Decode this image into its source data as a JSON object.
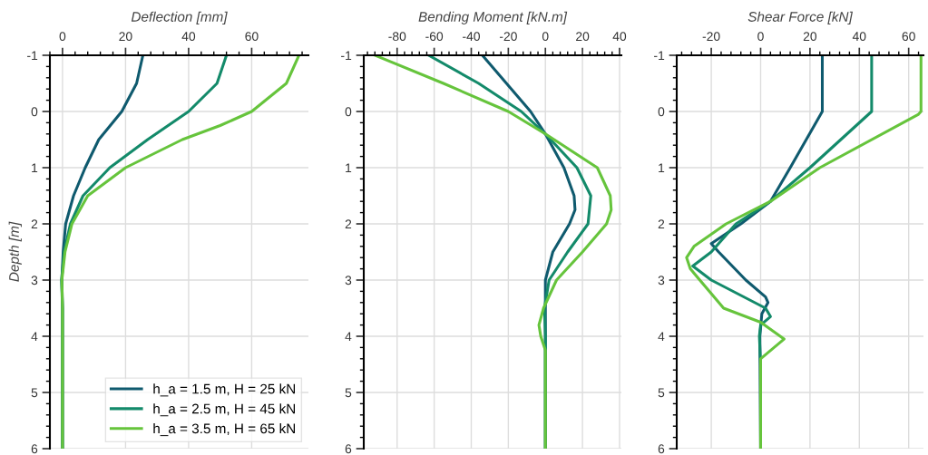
{
  "chart_data": [
    {
      "type": "line",
      "xlabel": "Deflection [mm]",
      "ylabel": "Depth [m]",
      "xlim": [
        -4,
        78
      ],
      "xticks": [
        0,
        20,
        40,
        60
      ],
      "ylim": [
        6,
        -1
      ],
      "yticks": [
        -1,
        0,
        1,
        2,
        3,
        4,
        5,
        6
      ],
      "grid": true,
      "legend": "bottom right",
      "series": [
        {
          "name": "h_a = 1.5 m, H = 25 kN",
          "color": "#0f5a6e",
          "x": [
            25.5,
            23.5,
            18.8,
            11.5,
            7.2,
            3.5,
            1,
            0.2,
            -0.2,
            0,
            0
          ],
          "values": [
            -1,
            -0.5,
            0,
            0.5,
            1,
            1.5,
            2,
            2.5,
            3,
            3.5,
            6
          ]
        },
        {
          "name": "h_a = 2.5 m, H = 45 kN",
          "color": "#138a6a",
          "x": [
            52,
            49,
            40,
            27,
            15,
            6.5,
            2.5,
            0.5,
            -0.3,
            0,
            0
          ],
          "values": [
            -1,
            -0.5,
            0,
            0.5,
            1,
            1.5,
            2,
            2.5,
            3,
            3.5,
            6
          ]
        },
        {
          "name": "h_a = 3.5 m, H = 65 kN",
          "color": "#66c43c",
          "x": [
            75,
            71,
            60,
            50,
            38,
            20,
            8,
            3,
            0.8,
            -0.2,
            0,
            0
          ],
          "values": [
            -1,
            -0.5,
            0,
            0.25,
            0.5,
            1,
            1.5,
            2,
            2.5,
            3,
            3.5,
            6
          ]
        }
      ]
    },
    {
      "type": "line",
      "xlabel": "Bending Moment [kN.m]",
      "xlim": [
        -98,
        41
      ],
      "xticks": [
        -80,
        -60,
        -40,
        -20,
        0,
        20,
        40
      ],
      "ylim": [
        6,
        -1
      ],
      "yticks": [
        -1,
        0,
        1,
        2,
        3,
        4,
        5,
        6
      ],
      "grid": true,
      "series": [
        {
          "color": "#0f5a6e",
          "x": [
            -34,
            -21,
            -8,
            0,
            10,
            15.5,
            16,
            13,
            4,
            0,
            0,
            0
          ],
          "values": [
            -1,
            -0.5,
            0,
            0.4,
            1,
            1.5,
            1.75,
            2,
            2.5,
            3,
            3.5,
            6
          ]
        },
        {
          "color": "#138a6a",
          "x": [
            -63,
            -36,
            -13,
            0,
            17,
            24.5,
            23,
            12,
            2,
            -0.5,
            0,
            0
          ],
          "values": [
            -1,
            -0.5,
            0,
            0.4,
            1,
            1.5,
            2,
            2.5,
            3,
            3.5,
            4,
            6
          ]
        },
        {
          "color": "#66c43c",
          "x": [
            -92,
            -55,
            -20,
            0,
            28,
            35,
            35.5,
            33,
            20,
            6,
            -1,
            -3.5,
            -2.5,
            0,
            0
          ],
          "values": [
            -1,
            -0.5,
            0,
            0.4,
            1,
            1.5,
            1.75,
            2,
            2.5,
            3,
            3.5,
            3.8,
            4,
            4.25,
            6
          ]
        }
      ]
    },
    {
      "type": "line",
      "xlabel": "Shear Force [kN]",
      "xlim": [
        -34,
        66
      ],
      "xticks": [
        -20,
        0,
        20,
        40,
        60
      ],
      "ylim": [
        6,
        -1
      ],
      "yticks": [
        -1,
        0,
        1,
        2,
        3,
        4,
        5,
        6
      ],
      "grid": true,
      "series": [
        {
          "color": "#0f5a6e",
          "x": [
            25,
            25,
            12,
            4,
            -8,
            -20,
            -17,
            -6,
            2,
            3,
            0.5,
            -0.3,
            0
          ],
          "values": [
            -1,
            0,
            1,
            1.6,
            2,
            2.35,
            2.5,
            3,
            3.3,
            3.4,
            3.6,
            4,
            6
          ]
        },
        {
          "color": "#138a6a",
          "x": [
            45,
            45,
            20,
            4,
            -10,
            -20,
            -27.5,
            -20,
            2,
            4,
            0,
            -0.5,
            0,
            0
          ],
          "values": [
            -1,
            0,
            1,
            1.6,
            2,
            2.5,
            2.75,
            3,
            3.5,
            3.65,
            3.8,
            4,
            4.5,
            6
          ]
        },
        {
          "color": "#66c43c",
          "x": [
            65,
            65,
            64,
            24,
            4,
            -14,
            -27,
            -30,
            -28.5,
            -15,
            0,
            9.5,
            0,
            0
          ],
          "values": [
            -1,
            0,
            0.05,
            1,
            1.6,
            2,
            2.4,
            2.6,
            2.8,
            3.5,
            3.75,
            4.05,
            4.4,
            6
          ]
        }
      ]
    }
  ]
}
